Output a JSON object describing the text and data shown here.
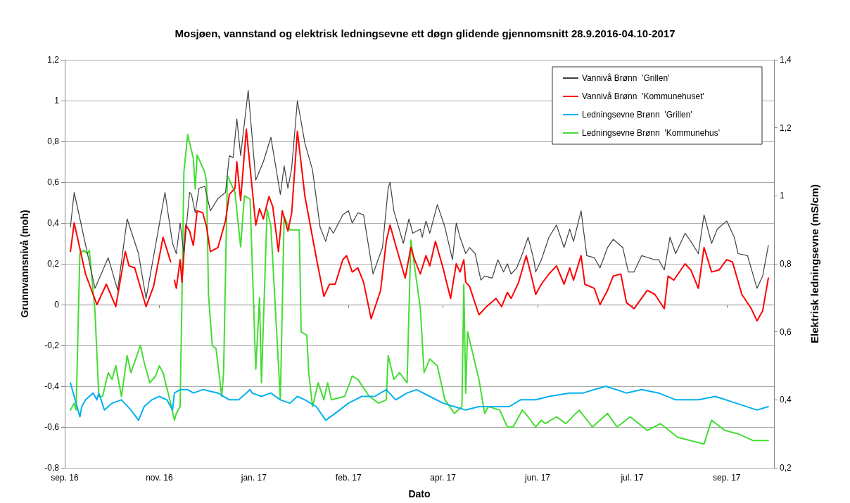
{
  "chart_data": {
    "type": "line",
    "title": "Mosjøen, vannstand og elektrisk ledningsevne ett døgn glidende gjennomsnitt 28.9.2016-04.10-2017",
    "xlabel": "Dato",
    "ylabel": "Grunnvannsnivå (moh)",
    "y2label": "Elektrisk ledningsevne (mS/cm)",
    "xlim": [
      "2016-09-26",
      "2017-10-06"
    ],
    "xticks": [
      {
        "value": "2016-09-26",
        "label": "sep. 16"
      },
      {
        "value": "2016-11-15",
        "label": "nov. 16"
      },
      {
        "value": "2017-01-04",
        "label": "jan. 17"
      },
      {
        "value": "2017-02-23",
        "label": "feb. 17"
      },
      {
        "value": "2017-04-14",
        "label": "apr. 17"
      },
      {
        "value": "2017-06-03",
        "label": "jun. 17"
      },
      {
        "value": "2017-07-23",
        "label": "jul. 17"
      },
      {
        "value": "2017-09-11",
        "label": "sep. 17"
      }
    ],
    "ylim": [
      -0.8,
      1.2
    ],
    "yticks": [
      {
        "value": -0.8,
        "label": "-0,8"
      },
      {
        "value": -0.6,
        "label": "-0,6"
      },
      {
        "value": -0.4,
        "label": "-0,4"
      },
      {
        "value": -0.2,
        "label": "-0,2"
      },
      0,
      {
        "value": 0.2,
        "label": "0,2"
      },
      {
        "value": 0.4,
        "label": "0,4"
      },
      {
        "value": 0.6,
        "label": "0,6"
      },
      {
        "value": 0.8,
        "label": "0,8"
      },
      1,
      {
        "value": 1.2,
        "label": "1,2"
      }
    ],
    "y2lim": [
      0.2,
      1.4
    ],
    "y2ticks": [
      {
        "value": 0.2,
        "label": "0,2"
      },
      {
        "value": 0.4,
        "label": "0,4"
      },
      {
        "value": 0.6,
        "label": "0,6"
      },
      {
        "value": 0.8,
        "label": "0,8"
      },
      1,
      {
        "value": 1.2,
        "label": "1,2"
      },
      {
        "value": 1.4,
        "label": "1,4"
      }
    ],
    "grid": "y",
    "legend": "top right",
    "marker": "none",
    "series": [
      {
        "name": "Vannivå Brønn  'Grillen'",
        "color": "#404040",
        "x": [
          "2016-09-29",
          "2016-10-01",
          "2016-10-12",
          "2016-10-19",
          "2016-10-24",
          "2016-10-29",
          "2016-11-04",
          "2016-11-08",
          "2016-11-18",
          "2016-11-22",
          "2016-11-24",
          "2016-11-26",
          "2016-11-28",
          "2016-12-01",
          "2016-12-02",
          "2016-12-04",
          "2016-12-06",
          "2016-12-09",
          "2016-12-12",
          "2016-12-16",
          "2016-12-20",
          "2016-12-22",
          "2016-12-24",
          "2016-12-26",
          "2016-12-28",
          "2017-01-01",
          "2017-01-05",
          "2017-01-09",
          "2017-01-13",
          "2017-01-18",
          "2017-01-20",
          "2017-01-22",
          "2017-01-24",
          "2017-01-27",
          "2017-01-31",
          "2017-02-04",
          "2017-02-08",
          "2017-02-11",
          "2017-02-13",
          "2017-02-15",
          "2017-02-20",
          "2017-02-23",
          "2017-02-25",
          "2017-02-28",
          "2017-03-03",
          "2017-03-08",
          "2017-03-13",
          "2017-03-16",
          "2017-03-17",
          "2017-03-19",
          "2017-03-24",
          "2017-03-27",
          "2017-03-29",
          "2017-04-02",
          "2017-04-03",
          "2017-04-05",
          "2017-04-07",
          "2017-04-11",
          "2017-04-15",
          "2017-04-19",
          "2017-04-21",
          "2017-04-23",
          "2017-04-26",
          "2017-04-28",
          "2017-05-01",
          "2017-05-04",
          "2017-05-06",
          "2017-05-10",
          "2017-05-13",
          "2017-05-16",
          "2017-05-18",
          "2017-05-20",
          "2017-05-23",
          "2017-05-26",
          "2017-05-29",
          "2017-06-01",
          "2017-06-02",
          "2017-06-05",
          "2017-06-09",
          "2017-06-13",
          "2017-06-17",
          "2017-06-20",
          "2017-06-22",
          "2017-06-26",
          "2017-06-29",
          "2017-07-03",
          "2017-07-06",
          "2017-07-10",
          "2017-07-13",
          "2017-07-18",
          "2017-07-21",
          "2017-07-24",
          "2017-07-28",
          "2017-08-04",
          "2017-08-06",
          "2017-08-09",
          "2017-08-12",
          "2017-08-15",
          "2017-08-20",
          "2017-08-23",
          "2017-08-27",
          "2017-08-30",
          "2017-09-03",
          "2017-09-06",
          "2017-09-11",
          "2017-09-15",
          "2017-09-17",
          "2017-09-22",
          "2017-09-27",
          "2017-09-30",
          "2017-10-03"
        ],
        "values": [
          0.38,
          0.55,
          0.08,
          0.23,
          0.07,
          0.42,
          0.25,
          0.03,
          0.55,
          0.3,
          0.25,
          0.4,
          0.25,
          0.55,
          0.54,
          0.45,
          0.57,
          0.58,
          0.46,
          0.52,
          0.55,
          0.73,
          0.72,
          0.91,
          0.73,
          1.05,
          0.61,
          0.7,
          0.82,
          0.54,
          0.68,
          0.57,
          0.67,
          1.0,
          0.79,
          0.66,
          0.38,
          0.31,
          0.38,
          0.35,
          0.44,
          0.46,
          0.4,
          0.45,
          0.44,
          0.15,
          0.28,
          0.57,
          0.6,
          0.46,
          0.3,
          0.42,
          0.35,
          0.37,
          0.33,
          0.41,
          0.35,
          0.49,
          0.38,
          0.22,
          0.4,
          0.33,
          0.25,
          0.28,
          0.25,
          0.12,
          0.14,
          0.13,
          0.22,
          0.16,
          0.2,
          0.15,
          0.18,
          0.25,
          0.33,
          0.22,
          0.16,
          0.22,
          0.33,
          0.39,
          0.28,
          0.37,
          0.31,
          0.46,
          0.24,
          0.23,
          0.18,
          0.28,
          0.32,
          0.28,
          0.16,
          0.16,
          0.24,
          0.22,
          0.22,
          0.17,
          0.33,
          0.25,
          0.35,
          0.31,
          0.25,
          0.44,
          0.3,
          0.37,
          0.41,
          0.33,
          0.25,
          0.24,
          0.08,
          0.14,
          0.29
        ]
      },
      {
        "name": "Vannivå Brønn  'Kommunehuset'",
        "color": "#ff0000",
        "x": [
          "2016-09-29",
          "2016-10-01",
          "2016-10-07",
          "2016-10-13",
          "2016-10-18",
          "2016-10-23",
          "2016-10-28",
          "2016-10-30",
          "2016-11-02",
          "2016-11-08",
          "2016-11-12",
          "2016-11-17",
          "2016-11-21",
          "2016-11-22",
          "2016-11-23",
          "2016-11-24",
          "2016-11-26",
          "2016-11-27",
          "2016-11-29",
          "2016-12-01",
          "2016-12-03",
          "2016-12-05",
          "2016-12-08",
          "2016-12-10",
          "2016-12-12",
          "2016-12-16",
          "2016-12-20",
          "2016-12-22",
          "2016-12-25",
          "2016-12-26",
          "2016-12-28",
          "2016-12-31",
          "2017-01-05",
          "2017-01-07",
          "2017-01-09",
          "2017-01-12",
          "2017-01-14",
          "2017-01-17",
          "2017-01-19",
          "2017-01-22",
          "2017-01-24",
          "2017-01-27",
          "2017-01-31",
          "2017-02-06",
          "2017-02-10",
          "2017-02-13",
          "2017-02-16",
          "2017-02-20",
          "2017-02-22",
          "2017-02-25",
          "2017-02-28",
          "2017-03-03",
          "2017-03-07",
          "2017-03-12",
          "2017-03-15",
          "2017-03-17",
          "2017-03-20",
          "2017-03-25",
          "2017-03-28",
          "2017-03-30",
          "2017-04-02",
          "2017-04-05",
          "2017-04-07",
          "2017-04-10",
          "2017-04-14",
          "2017-04-18",
          "2017-04-21",
          "2017-04-23",
          "2017-04-25",
          "2017-04-26",
          "2017-04-28",
          "2017-05-03",
          "2017-05-07",
          "2017-05-12",
          "2017-05-15",
          "2017-05-18",
          "2017-05-20",
          "2017-05-24",
          "2017-05-28",
          "2017-05-31",
          "2017-06-02",
          "2017-06-05",
          "2017-06-09",
          "2017-06-13",
          "2017-06-17",
          "2017-06-20",
          "2017-06-22",
          "2017-06-26",
          "2017-06-28",
          "2017-07-03",
          "2017-07-06",
          "2017-07-10",
          "2017-07-13",
          "2017-07-17",
          "2017-07-20",
          "2017-07-24",
          "2017-07-31",
          "2017-08-04",
          "2017-08-09",
          "2017-08-11",
          "2017-08-14",
          "2017-08-20",
          "2017-08-23",
          "2017-08-27",
          "2017-08-30",
          "2017-09-03",
          "2017-09-07",
          "2017-09-11",
          "2017-09-14",
          "2017-09-19",
          "2017-09-24",
          "2017-09-27",
          "2017-09-30",
          "2017-10-03"
        ],
        "values": [
          0.26,
          0.4,
          0.15,
          0.0,
          0.1,
          -0.01,
          0.26,
          0.19,
          0.18,
          -0.01,
          0.09,
          0.33,
          0.21,
          null,
          0.12,
          0.08,
          0.22,
          0.11,
          0.39,
          0.36,
          0.29,
          0.46,
          0.45,
          0.38,
          0.26,
          0.28,
          0.41,
          0.54,
          0.57,
          0.7,
          0.51,
          0.86,
          0.39,
          0.47,
          0.42,
          0.53,
          0.48,
          0.26,
          0.46,
          0.36,
          0.45,
          0.85,
          0.53,
          0.23,
          0.04,
          0.1,
          0.1,
          0.22,
          0.24,
          0.16,
          0.18,
          0.11,
          -0.07,
          0.07,
          0.31,
          0.39,
          0.29,
          0.13,
          0.28,
          0.22,
          0.15,
          0.24,
          0.19,
          0.31,
          0.18,
          0.03,
          0.2,
          0.16,
          0.22,
          0.11,
          0.09,
          -0.05,
          -0.01,
          0.03,
          -0.01,
          0.06,
          0.03,
          0.11,
          0.24,
          0.13,
          0.05,
          0.1,
          0.15,
          0.19,
          0.1,
          0.18,
          0.12,
          0.24,
          0.1,
          0.08,
          0.0,
          0.07,
          0.14,
          0.15,
          0.01,
          -0.02,
          0.07,
          0.05,
          -0.02,
          0.14,
          0.12,
          0.2,
          0.17,
          0.08,
          0.28,
          0.16,
          0.17,
          0.22,
          0.21,
          0.05,
          -0.02,
          -0.08,
          -0.03,
          0.13
        ]
      },
      {
        "name": "Ledningsevne Brønn  'Grillen'",
        "color": "#00b0f0",
        "axis": "y2",
        "x": [
          "2016-09-29",
          "2016-10-04",
          "2016-10-05",
          "2016-10-07",
          "2016-10-11",
          "2016-10-13",
          "2016-10-14",
          "2016-10-17",
          "2016-10-21",
          "2016-10-26",
          "2016-10-31",
          "2016-11-04",
          "2016-11-07",
          "2016-11-11",
          "2016-11-15",
          "2016-11-19",
          "2016-11-22",
          "2016-11-23",
          "2016-11-26",
          "2016-11-30",
          "2016-12-03",
          "2016-12-08",
          "2016-12-16",
          "2016-12-22",
          "2016-12-27",
          "2016-12-31",
          "2017-01-02",
          "2017-01-03",
          "2017-01-08",
          "2017-01-13",
          "2017-01-18",
          "2017-01-23",
          "2017-01-27",
          "2017-01-31",
          "2017-02-06",
          "2017-02-11",
          "2017-02-16",
          "2017-02-23",
          "2017-03-02",
          "2017-03-09",
          "2017-03-15",
          "2017-03-20",
          "2017-03-26",
          "2017-03-31",
          "2017-04-07",
          "2017-04-14",
          "2017-04-20",
          "2017-04-26",
          "2017-05-03",
          "2017-05-10",
          "2017-05-19",
          "2017-05-25",
          "2017-06-02",
          "2017-06-09",
          "2017-06-20",
          "2017-06-27",
          "2017-07-09",
          "2017-07-20",
          "2017-07-28",
          "2017-08-06",
          "2017-08-15",
          "2017-08-27",
          "2017-09-05",
          "2017-09-16",
          "2017-09-27",
          "2017-10-03"
        ],
        "values": [
          0.45,
          0.35,
          0.38,
          0.4,
          0.42,
          0.4,
          0.42,
          0.37,
          0.39,
          0.4,
          0.37,
          0.34,
          0.38,
          0.4,
          0.41,
          0.4,
          0.37,
          0.42,
          0.43,
          0.43,
          0.42,
          0.43,
          0.42,
          0.4,
          0.4,
          0.42,
          0.43,
          0.42,
          0.41,
          0.42,
          0.4,
          0.39,
          0.41,
          0.4,
          0.38,
          0.34,
          0.36,
          0.39,
          0.41,
          0.41,
          0.43,
          0.4,
          0.42,
          0.43,
          0.41,
          0.39,
          0.38,
          0.37,
          0.38,
          0.38,
          0.38,
          0.4,
          0.4,
          0.41,
          0.42,
          0.42,
          0.44,
          0.42,
          0.43,
          0.42,
          0.4,
          0.4,
          0.41,
          0.39,
          0.37,
          0.38
        ]
      },
      {
        "name": "Ledningsevne Brønn  'Kommunehus'",
        "color": "#44dd33",
        "axis": "y2",
        "x": [
          "2016-09-29",
          "2016-10-01",
          "2016-10-02",
          "2016-10-04",
          "2016-10-06",
          "2016-10-08",
          "2016-10-09",
          "2016-10-12",
          "2016-10-14",
          "2016-10-16",
          "2016-10-19",
          "2016-10-21",
          "2016-10-23",
          "2016-10-26",
          "2016-10-29",
          "2016-10-31",
          "2016-11-05",
          "2016-11-07",
          "2016-11-10",
          "2016-11-13",
          "2016-11-15",
          "2016-11-17",
          "2016-11-21",
          "2016-11-23",
          "2016-11-24",
          "2016-11-26",
          "2016-11-27",
          "2016-11-28",
          "2016-11-30",
          "2016-12-03",
          "2016-12-04",
          "2016-12-05",
          "2016-12-09",
          "2016-12-10",
          "2016-12-11",
          "2016-12-13",
          "2016-12-15",
          "2016-12-18",
          "2016-12-19",
          "2016-12-21",
          "2016-12-25",
          "2016-12-28",
          "2016-12-30",
          "2017-01-02",
          "2017-01-05",
          "2017-01-07",
          "2017-01-08",
          "2017-01-11",
          "2017-01-13",
          "2017-01-18",
          "2017-01-20",
          "2017-01-23",
          "2017-01-28",
          "2017-01-29",
          "2017-02-01",
          "2017-02-02",
          "2017-02-04",
          "2017-02-07",
          "2017-02-10",
          "2017-02-12",
          "2017-02-14",
          "2017-02-21",
          "2017-02-25",
          "2017-02-28",
          "2017-03-06",
          "2017-03-11",
          "2017-03-15",
          "2017-03-16",
          "2017-03-19",
          "2017-03-22",
          "2017-03-26",
          "2017-03-28",
          "2017-04-02",
          "2017-04-04",
          "2017-04-07",
          "2017-04-11",
          "2017-04-15",
          "2017-04-20",
          "2017-04-24",
          "2017-04-25",
          "2017-04-26",
          "2017-04-27",
          "2017-05-03",
          "2017-05-06",
          "2017-05-08",
          "2017-05-14",
          "2017-05-18",
          "2017-05-21",
          "2017-05-26",
          "2017-05-29",
          "2017-06-02",
          "2017-06-05",
          "2017-06-07",
          "2017-06-13",
          "2017-06-18",
          "2017-06-25",
          "2017-07-02",
          "2017-07-10",
          "2017-07-15",
          "2017-07-22",
          "2017-07-31",
          "2017-08-07",
          "2017-08-16",
          "2017-08-30",
          "2017-09-03",
          "2017-09-10",
          "2017-09-17",
          "2017-09-25",
          "2017-10-03"
        ],
        "values": [
          0.37,
          0.39,
          0.37,
          0.83,
          0.84,
          0.83,
          0.84,
          0.66,
          0.41,
          0.41,
          0.48,
          0.46,
          0.5,
          0.41,
          0.53,
          0.48,
          0.56,
          0.51,
          0.45,
          0.47,
          0.5,
          0.48,
          0.39,
          0.34,
          0.36,
          0.38,
          0.71,
          1.07,
          1.18,
          1.11,
          1.02,
          1.12,
          1.07,
          1.04,
          0.71,
          0.56,
          0.55,
          0.41,
          0.48,
          1.06,
          1.01,
          0.85,
          1.0,
          0.99,
          0.49,
          0.7,
          0.45,
          0.96,
          0.91,
          0.4,
          0.94,
          0.9,
          0.9,
          0.6,
          0.59,
          0.48,
          0.38,
          0.45,
          0.4,
          0.45,
          0.4,
          0.41,
          0.47,
          0.46,
          0.41,
          0.39,
          0.4,
          0.53,
          0.46,
          0.48,
          0.45,
          0.87,
          0.67,
          0.48,
          0.52,
          0.5,
          0.4,
          0.36,
          0.38,
          0.74,
          0.42,
          0.6,
          0.46,
          0.36,
          0.38,
          0.37,
          0.32,
          0.32,
          0.37,
          0.35,
          0.32,
          0.34,
          0.33,
          0.35,
          0.33,
          0.37,
          0.32,
          0.36,
          0.32,
          0.35,
          0.31,
          0.33,
          0.29,
          0.27,
          0.34,
          0.31,
          0.3,
          0.28,
          0.28
        ]
      }
    ]
  }
}
